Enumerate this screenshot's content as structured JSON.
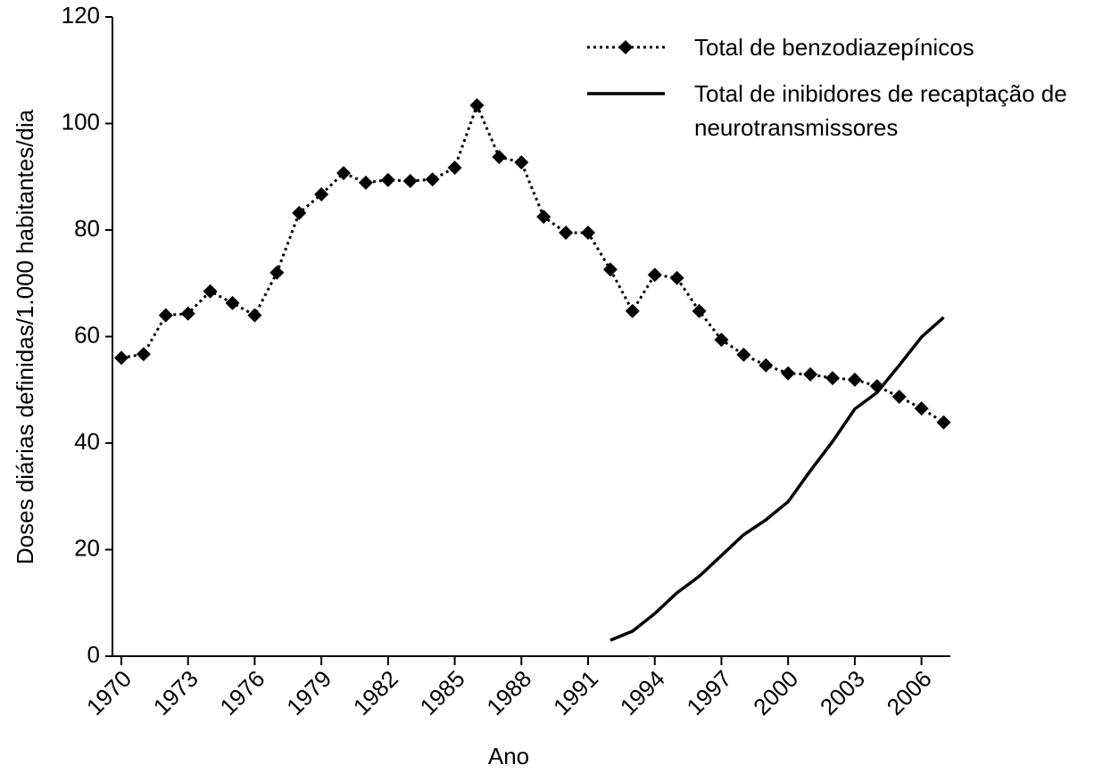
{
  "chart_data": {
    "type": "line",
    "x_label": "Ano",
    "y_label": "Doses diárias definidas/1.000 habitantes/dia",
    "x": [
      1970,
      1971,
      1972,
      1973,
      1974,
      1975,
      1976,
      1977,
      1978,
      1979,
      1980,
      1981,
      1982,
      1983,
      1984,
      1985,
      1986,
      1987,
      1988,
      1989,
      1990,
      1991,
      1992,
      1993,
      1994,
      1995,
      1996,
      1997,
      1998,
      1999,
      2000,
      2001,
      2002,
      2003,
      2004,
      2005,
      2006,
      2007
    ],
    "series": [
      {
        "name": "Total de benzodiazepínicos",
        "color": "#000000",
        "style": "dotted",
        "marker": "diamond",
        "values": [
          56,
          56.7,
          64,
          64.3,
          68.5,
          66.3,
          64,
          72,
          83.2,
          86.7,
          90.7,
          88.9,
          89.4,
          89.2,
          89.5,
          91.7,
          103.4,
          93.7,
          92.7,
          82.5,
          79.5,
          79.5,
          72.6,
          64.8,
          71.6,
          71,
          64.8,
          59.4,
          56.6,
          54.6,
          53.1,
          52.9,
          52.2,
          51.9,
          50.7,
          48.7,
          46.5,
          43.9
        ]
      },
      {
        "name": "Total de inibidores de recaptação de neurotransmissores",
        "color": "#000000",
        "style": "solid",
        "values": [
          null,
          null,
          null,
          null,
          null,
          null,
          null,
          null,
          null,
          null,
          null,
          null,
          null,
          null,
          null,
          null,
          null,
          null,
          null,
          null,
          null,
          null,
          3,
          4.7,
          8,
          11.9,
          15,
          18.9,
          22.8,
          25.6,
          29,
          34.8,
          40.3,
          46.4,
          49.5,
          54.6,
          59.9,
          63.6
        ]
      }
    ],
    "xlim": [
      1969.6,
      2007.3
    ],
    "xticks": [
      1970,
      1973,
      1976,
      1979,
      1982,
      1985,
      1988,
      1991,
      1994,
      1997,
      2000,
      2003,
      2006
    ],
    "ylim": [
      0,
      120
    ],
    "yticks": [
      0,
      20,
      40,
      60,
      80,
      100,
      120
    ],
    "legend": "upper right",
    "grid": false
  }
}
